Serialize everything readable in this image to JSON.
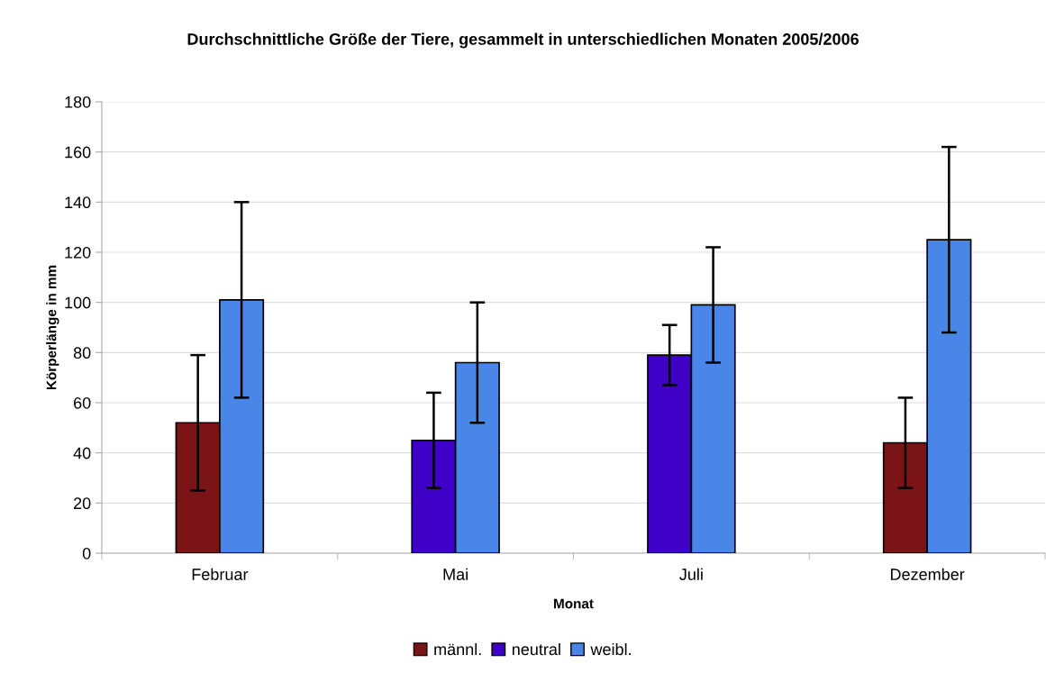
{
  "chart_data": {
    "type": "bar",
    "title": "Durchschnittliche Größe der Tiere, gesammelt in unterschiedlichen Monaten 2005/2006",
    "xlabel": "Monat",
    "ylabel": "Körperlänge in mm",
    "categories": [
      "Februar",
      "Mai",
      "Juli",
      "Dezember"
    ],
    "series": [
      {
        "name": "männl.",
        "color": "#7b1416",
        "values": [
          52,
          null,
          null,
          44
        ],
        "errors": [
          [
            25,
            79
          ],
          null,
          null,
          [
            26,
            62
          ]
        ]
      },
      {
        "name": "neutral",
        "color": "#3f00c8",
        "values": [
          null,
          45,
          79,
          null
        ],
        "errors": [
          null,
          [
            26,
            64
          ],
          [
            67,
            91
          ],
          null
        ]
      },
      {
        "name": "weibl.",
        "color": "#4a86e8",
        "values": [
          101,
          76,
          99,
          125
        ],
        "errors": [
          [
            62,
            140
          ],
          [
            52,
            100
          ],
          [
            76,
            122
          ],
          [
            88,
            162
          ]
        ]
      }
    ],
    "ylim": [
      0,
      180
    ],
    "yticks": [
      0,
      20,
      40,
      60,
      80,
      100,
      120,
      140,
      160,
      180
    ],
    "grid": "y",
    "legend": "bottom"
  }
}
